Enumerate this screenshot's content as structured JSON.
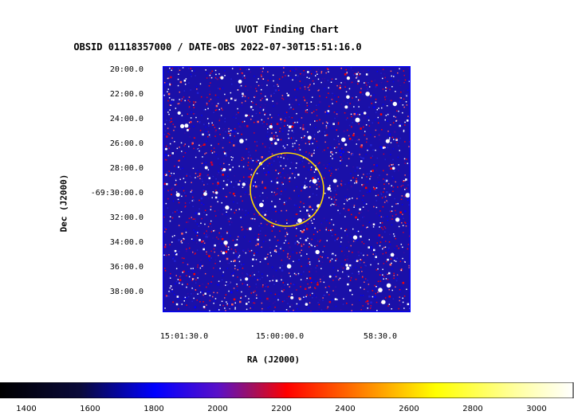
{
  "title": "UVOT Finding Chart",
  "subtitle": "OBSID 01118357000 / DATE-OBS 2022-07-30T15:51:16.0",
  "ylabel": "Dec (J2000)",
  "xlabel": "RA (J2000)",
  "dec_ticks": [
    "20:00.0",
    "22:00.0",
    "24:00.0",
    "26:00.0",
    "28:00.0",
    "-69:30:00.0",
    "32:00.0",
    "34:00.0",
    "36:00.0",
    "38:00.0"
  ],
  "ra_ticks": [
    "15:01:30.0",
    "15:00:00.0",
    "58:30.0"
  ],
  "colorbar": {
    "ticks": [
      "1400",
      "1600",
      "1800",
      "2000",
      "2200",
      "2400",
      "2600",
      "2800",
      "3000"
    ],
    "range": [
      1300,
      3100
    ]
  },
  "colors": {
    "frame": "#0000ff",
    "circle": "#ffd700"
  }
}
